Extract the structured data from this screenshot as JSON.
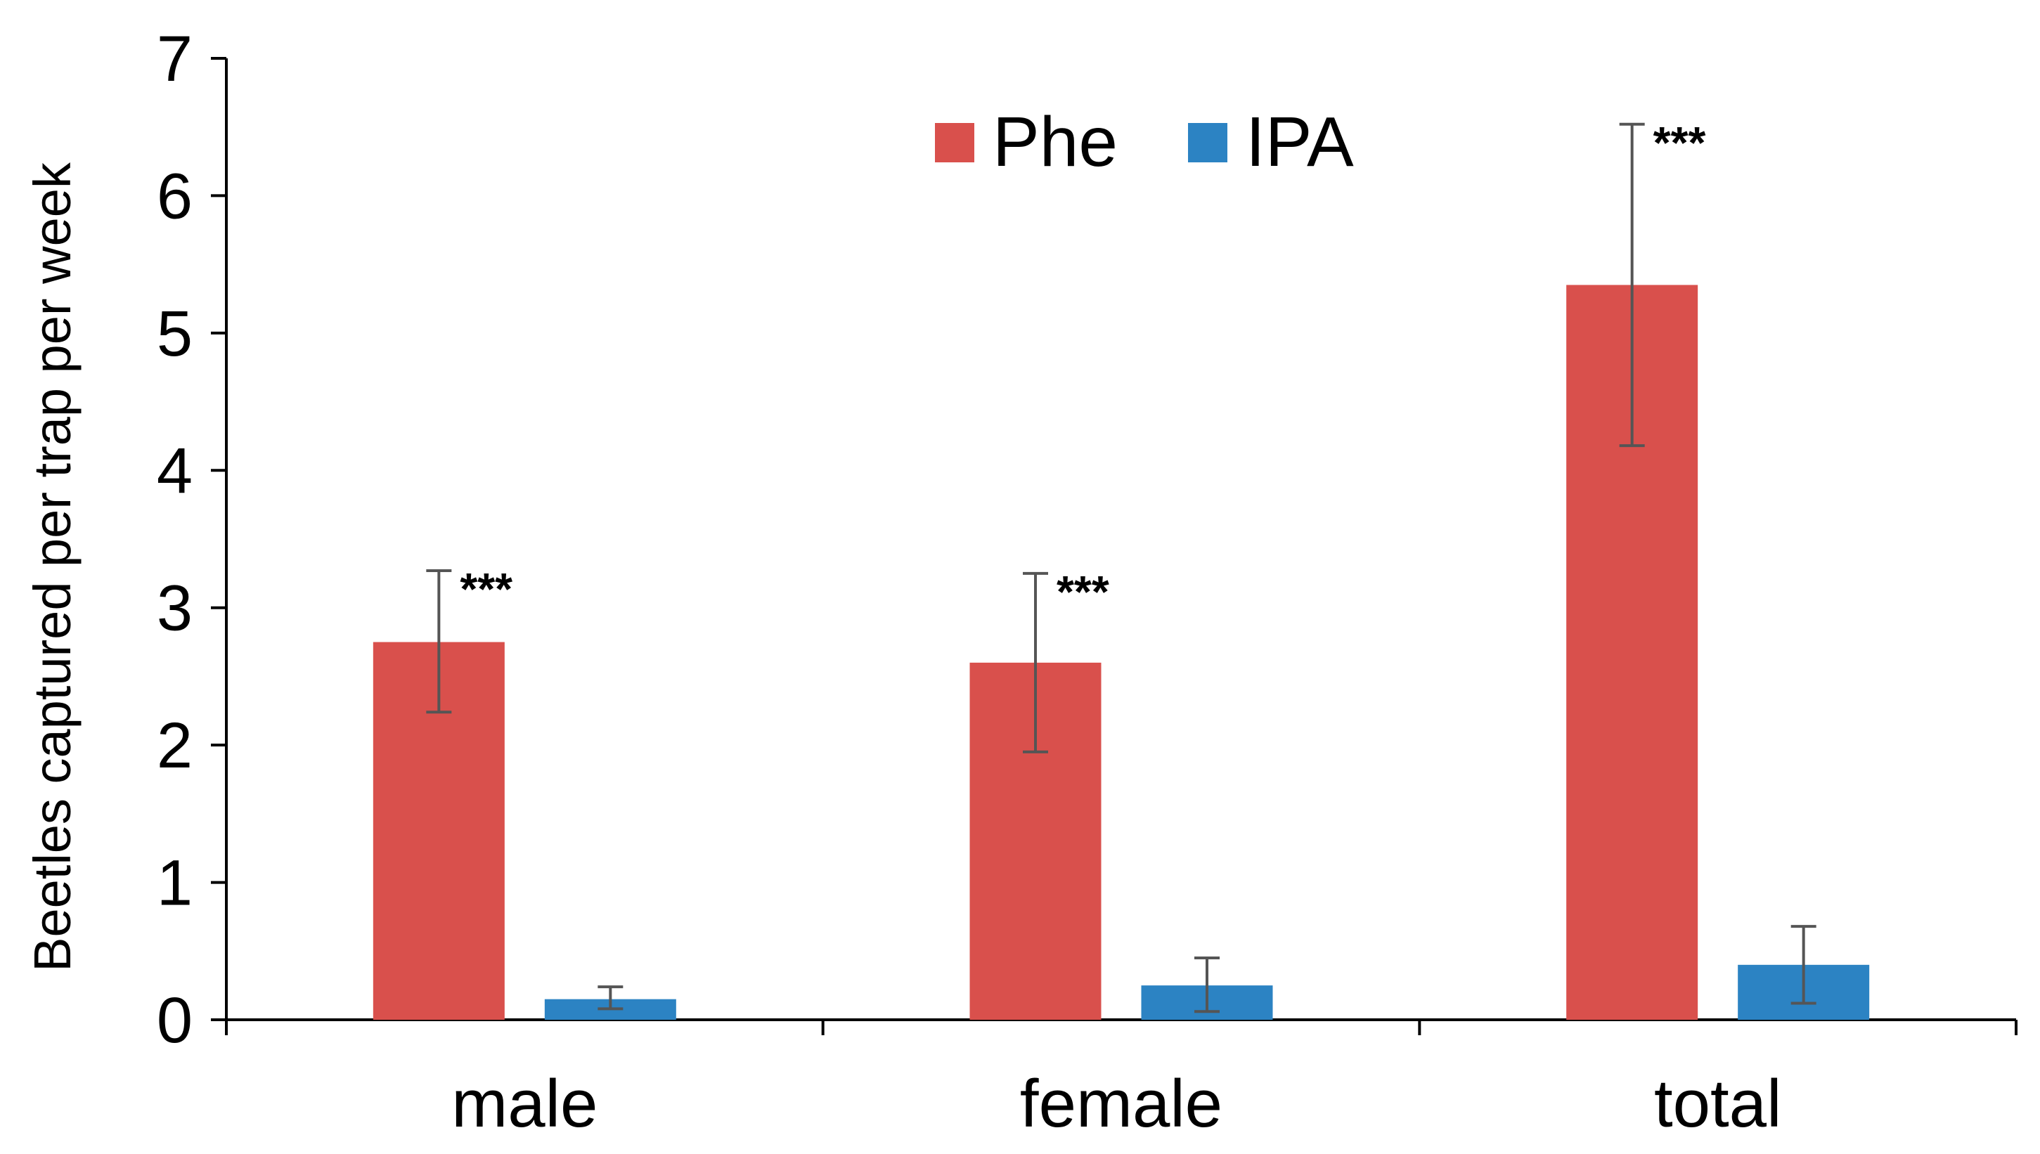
{
  "chart_data": {
    "type": "bar",
    "title": "",
    "xlabel": "",
    "ylabel": "Beetles captured per trap per week",
    "ylim": [
      0,
      7
    ],
    "yticks": [
      0,
      1,
      2,
      3,
      4,
      5,
      6,
      7
    ],
    "grid": false,
    "legend_position": "top-center",
    "categories": [
      "male",
      "female",
      "total"
    ],
    "series": [
      {
        "name": "Phe",
        "color": "#d9504c",
        "values": [
          2.75,
          2.6,
          5.35
        ],
        "error_low": [
          2.24,
          1.95,
          4.18
        ],
        "error_high": [
          3.27,
          3.25,
          6.52
        ],
        "annotations": [
          "***",
          "***",
          "***"
        ]
      },
      {
        "name": "IPA",
        "color": "#2c83c3",
        "values": [
          0.15,
          0.25,
          0.4
        ],
        "error_low": [
          0.08,
          0.06,
          0.12
        ],
        "error_high": [
          0.24,
          0.45,
          0.68
        ],
        "annotations": [
          "",
          "",
          ""
        ]
      }
    ]
  }
}
